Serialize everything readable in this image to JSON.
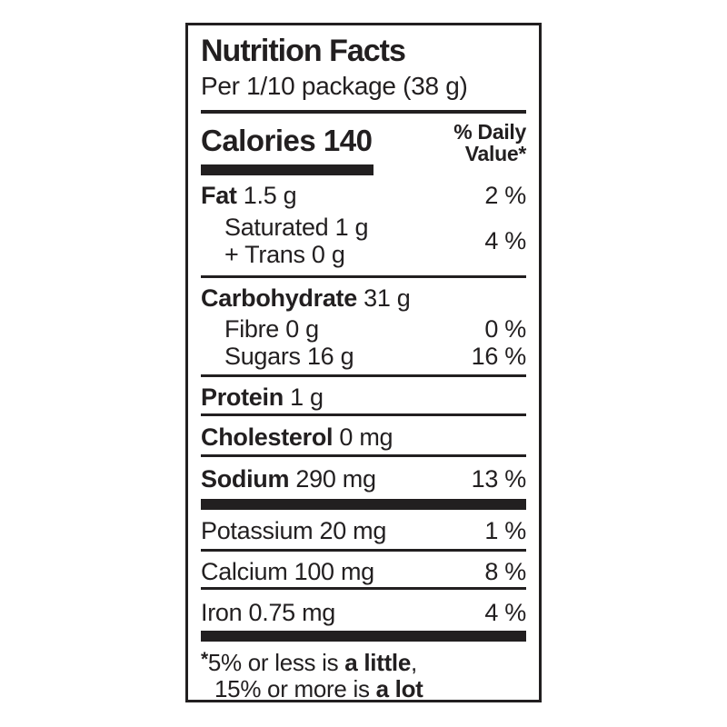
{
  "label": {
    "ink_color": "#221f20",
    "background_color": "#ffffff",
    "title": "Nutrition Facts",
    "serving": "Per 1/10 package (38 g)",
    "calories": {
      "label": "Calories",
      "value": "140"
    },
    "daily_value_header": {
      "line1": "% Daily",
      "line2": "Value*"
    },
    "rows": {
      "fat": {
        "bold": "Fat",
        "rest": " 1.5 g",
        "pct": "2 %"
      },
      "saturated": {
        "line1": "Saturated 1 g",
        "line2": "+ Trans 0 g",
        "pct": "4 %"
      },
      "carbohydrate": {
        "bold": "Carbohydrate",
        "rest": " 31 g",
        "pct": ""
      },
      "fibre": {
        "text": "Fibre 0 g",
        "pct": "0 %"
      },
      "sugars": {
        "text": "Sugars 16 g",
        "pct": "16 %"
      },
      "protein": {
        "bold": "Protein",
        "rest": " 1 g",
        "pct": ""
      },
      "cholesterol": {
        "bold": "Cholesterol",
        "rest": " 0 mg",
        "pct": ""
      },
      "sodium": {
        "bold": "Sodium",
        "rest": " 290 mg",
        "pct": "13 %"
      },
      "potassium": {
        "text": "Potassium 20 mg",
        "pct": "1 %"
      },
      "calcium": {
        "text": "Calcium 100 mg",
        "pct": "8 %"
      },
      "iron": {
        "text": "Iron 0.75 mg",
        "pct": "4 %"
      }
    },
    "footnote": {
      "asterisk": "*",
      "line1_text": "5% or less is ",
      "line1_bold": "a little",
      "line1_suffix": ",",
      "line2_text": "15% or more is ",
      "line2_bold": "a lot"
    }
  }
}
